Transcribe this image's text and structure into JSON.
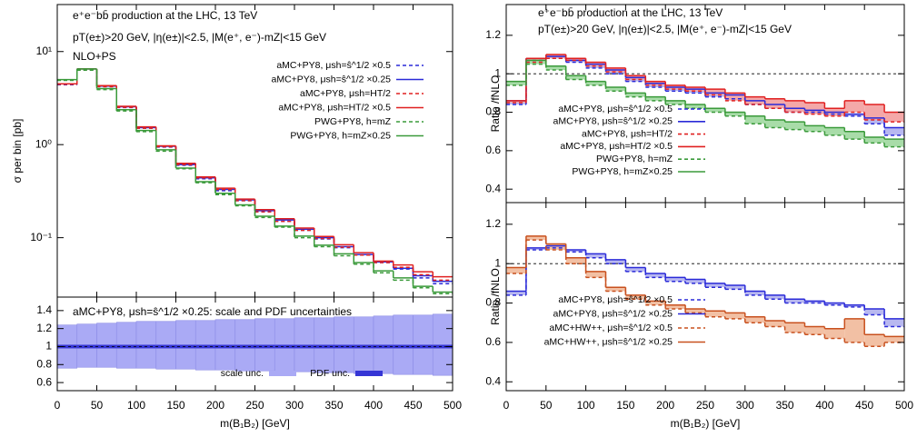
{
  "chart_data": [
    {
      "type": "histogram",
      "title": "e⁺e⁻bb̄ production at the LHC, 13 TeV",
      "subtitle": "pT(e±)>20 GeV, |η(e±)|<2.5, |M(e⁺, e⁻)-mZ|<15 GeV",
      "note": "NLO+PS",
      "y_label": "σ per bin [pb]",
      "log_scale": true,
      "xlim": [
        0,
        500
      ],
      "xticks": [
        0,
        50,
        100,
        150,
        200,
        250,
        300,
        350,
        400,
        450,
        500
      ],
      "ylim": [
        0.023,
        32
      ],
      "yticks": [
        {
          "value": 0.1,
          "label": "10⁻¹"
        },
        {
          "value": 1,
          "label": "10⁰"
        },
        {
          "value": 10,
          "label": "10¹"
        }
      ],
      "bins": [
        0,
        25,
        50,
        75,
        100,
        125,
        150,
        175,
        200,
        225,
        250,
        275,
        300,
        325,
        350,
        375,
        400,
        425,
        450,
        475,
        500
      ],
      "series": [
        {
          "name": "aMC+PY8, μsh=ŝ^1/2 ×0.5",
          "color": "#2a2ad8",
          "line_style": "dashed",
          "values": [
            4.4,
            6.4,
            4.2,
            2.5,
            1.5,
            0.94,
            0.6,
            0.43,
            0.32,
            0.25,
            0.19,
            0.15,
            0.12,
            0.097,
            0.078,
            0.065,
            0.054,
            0.046,
            0.037,
            0.032
          ]
        },
        {
          "name": "aMC+PY8, μsh=ŝ^1/2 ×0.25",
          "color": "#2a2ad8",
          "line_style": "solid",
          "values": [
            4.5,
            6.5,
            4.25,
            2.55,
            1.52,
            0.96,
            0.61,
            0.44,
            0.33,
            0.255,
            0.195,
            0.155,
            0.123,
            0.1,
            0.08,
            0.066,
            0.055,
            0.047,
            0.039,
            0.034
          ]
        },
        {
          "name": "aMC+PY8, μsh=HT/2",
          "color": "#e02020",
          "line_style": "dashed",
          "values": [
            4.45,
            6.4,
            4.2,
            2.52,
            1.5,
            0.95,
            0.61,
            0.44,
            0.33,
            0.25,
            0.19,
            0.15,
            0.12,
            0.098,
            0.079,
            0.065,
            0.054,
            0.048,
            0.04,
            0.035
          ]
        },
        {
          "name": "aMC+PY8, μsh=HT/2 ×0.5",
          "color": "#e02020",
          "line_style": "solid",
          "values": [
            4.5,
            6.5,
            4.3,
            2.58,
            1.55,
            0.97,
            0.63,
            0.45,
            0.34,
            0.26,
            0.2,
            0.16,
            0.127,
            0.103,
            0.084,
            0.069,
            0.056,
            0.051,
            0.043,
            0.038
          ]
        },
        {
          "name": "PWG+PY8, h=mZ",
          "color": "#3a9a3a",
          "line_style": "dashed",
          "values": [
            4.9,
            6.3,
            3.9,
            2.3,
            1.38,
            0.85,
            0.55,
            0.39,
            0.29,
            0.22,
            0.165,
            0.13,
            0.1,
            0.08,
            0.064,
            0.052,
            0.042,
            0.035,
            0.029,
            0.025
          ]
        },
        {
          "name": "PWG+PY8, h=mZ×0.25",
          "color": "#3a9a3a",
          "line_style": "solid",
          "values": [
            5.0,
            6.5,
            4.0,
            2.37,
            1.42,
            0.88,
            0.56,
            0.4,
            0.3,
            0.225,
            0.17,
            0.133,
            0.104,
            0.083,
            0.067,
            0.054,
            0.044,
            0.037,
            0.03,
            0.026
          ]
        }
      ]
    },
    {
      "type": "band",
      "annotation": "aMC+PY8, μsh=ŝ^1/2 ×0.25: scale and PDF uncertainties",
      "x_label": "m(B₁B₂) [GeV]",
      "xlim": [
        0,
        500
      ],
      "xticks": [
        0,
        50,
        100,
        150,
        200,
        250,
        300,
        350,
        400,
        450,
        500
      ],
      "ylim": [
        0.51,
        1.55
      ],
      "yticks": [
        0.6,
        0.8,
        1,
        1.2,
        1.4
      ],
      "hline": 1,
      "bins": [
        0,
        25,
        50,
        75,
        100,
        125,
        150,
        175,
        200,
        225,
        250,
        275,
        300,
        325,
        350,
        375,
        400,
        425,
        450,
        475,
        500
      ],
      "series": [
        {
          "name": "scale unc.",
          "color": "#aaaaf5",
          "lower": [
            0.76,
            0.77,
            0.77,
            0.76,
            0.76,
            0.75,
            0.75,
            0.74,
            0.74,
            0.73,
            0.73,
            0.72,
            0.72,
            0.71,
            0.71,
            0.7,
            0.7,
            0.69,
            0.69,
            0.68
          ],
          "upper": [
            1.24,
            1.25,
            1.26,
            1.27,
            1.28,
            1.28,
            1.29,
            1.29,
            1.3,
            1.3,
            1.31,
            1.31,
            1.32,
            1.32,
            1.33,
            1.33,
            1.34,
            1.35,
            1.35,
            1.36
          ]
        },
        {
          "name": "PDF unc.",
          "color": "#3535d5",
          "lower": [
            0.98,
            0.98,
            0.98,
            0.98,
            0.98,
            0.98,
            0.98,
            0.98,
            0.98,
            0.98,
            0.98,
            0.98,
            0.98,
            0.98,
            0.98,
            0.98,
            0.98,
            0.98,
            0.98,
            0.98
          ],
          "upper": [
            1.02,
            1.02,
            1.02,
            1.02,
            1.02,
            1.02,
            1.02,
            1.02,
            1.02,
            1.02,
            1.02,
            1.02,
            1.02,
            1.02,
            1.02,
            1.02,
            1.02,
            1.02,
            1.02,
            1.02
          ]
        }
      ]
    },
    {
      "type": "histogram",
      "title": "e⁺e⁻bb̄ production at the LHC, 13 TeV",
      "subtitle": "pT(e±)>20 GeV, |η(e±)|<2.5, |M(e⁺, e⁻)-mZ|<15 GeV",
      "y_label": "Ratio /fNLO",
      "hline": 1,
      "xlim": [
        0,
        500
      ],
      "xticks": [
        0,
        50,
        100,
        150,
        200,
        250,
        300,
        350,
        400,
        450,
        500
      ],
      "ylim": [
        0.33,
        1.36
      ],
      "yticks": [
        0.4,
        0.6,
        0.8,
        1,
        1.2
      ],
      "bins": [
        0,
        25,
        50,
        75,
        100,
        125,
        150,
        175,
        200,
        225,
        250,
        275,
        300,
        325,
        350,
        375,
        400,
        425,
        450,
        475,
        500
      ],
      "series": [
        {
          "name": "aMC+PY8, μsh=ŝ^1/2 ×0.5",
          "color": "#2a2ad8",
          "line_style": "dashed",
          "values": [
            0.84,
            1.07,
            1.08,
            1.06,
            1.03,
            1.0,
            0.96,
            0.93,
            0.91,
            0.9,
            0.88,
            0.87,
            0.84,
            0.82,
            0.8,
            0.8,
            0.79,
            0.78,
            0.74,
            0.68
          ]
        },
        {
          "name": "aMC+PY8, μsh=ŝ^1/2 ×0.25",
          "color": "#2a2ad8",
          "line_style": "solid",
          "band_color": "#b8b8f0",
          "values": [
            0.86,
            1.08,
            1.09,
            1.07,
            1.05,
            1.02,
            0.98,
            0.95,
            0.93,
            0.92,
            0.9,
            0.89,
            0.86,
            0.84,
            0.82,
            0.81,
            0.8,
            0.79,
            0.77,
            0.72
          ]
        },
        {
          "name": "aMC+PY8, μsh=HT/2",
          "color": "#e02020",
          "line_style": "dashed",
          "values": [
            0.85,
            1.06,
            1.08,
            1.07,
            1.04,
            1.01,
            0.97,
            0.94,
            0.92,
            0.91,
            0.89,
            0.86,
            0.84,
            0.82,
            0.8,
            0.79,
            0.78,
            0.8,
            0.76,
            0.75
          ]
        },
        {
          "name": "aMC+PY8, μsh=HT/2 ×0.5",
          "color": "#e02020",
          "line_style": "solid",
          "band_color": "#f4a8a8",
          "values": [
            0.86,
            1.08,
            1.1,
            1.08,
            1.06,
            1.03,
            0.99,
            0.96,
            0.94,
            0.93,
            0.92,
            0.9,
            0.88,
            0.87,
            0.86,
            0.85,
            0.82,
            0.86,
            0.84,
            0.8
          ]
        },
        {
          "name": "PWG+PY8, h=mZ",
          "color": "#3a9a3a",
          "line_style": "dashed",
          "values": [
            0.94,
            1.05,
            1.02,
            0.97,
            0.94,
            0.91,
            0.88,
            0.86,
            0.84,
            0.82,
            0.8,
            0.78,
            0.74,
            0.72,
            0.71,
            0.7,
            0.68,
            0.66,
            0.64,
            0.62
          ]
        },
        {
          "name": "PWG+PY8, h=mZ×0.25",
          "color": "#3a9a3a",
          "line_style": "solid",
          "band_color": "#a8dca8",
          "values": [
            0.96,
            1.07,
            1.04,
            0.99,
            0.96,
            0.93,
            0.9,
            0.88,
            0.86,
            0.84,
            0.82,
            0.8,
            0.78,
            0.76,
            0.75,
            0.73,
            0.72,
            0.7,
            0.67,
            0.66
          ]
        }
      ]
    },
    {
      "type": "histogram",
      "y_label": "Ratio /fNLO",
      "x_label": "m(B₁B₂) [GeV]",
      "hline": 1,
      "xlim": [
        0,
        500
      ],
      "xticks": [
        0,
        50,
        100,
        150,
        200,
        250,
        300,
        350,
        400,
        450,
        500
      ],
      "ylim": [
        0.355,
        1.31
      ],
      "yticks": [
        0.4,
        0.6,
        0.8,
        1,
        1.2
      ],
      "bins": [
        0,
        25,
        50,
        75,
        100,
        125,
        150,
        175,
        200,
        225,
        250,
        275,
        300,
        325,
        350,
        375,
        400,
        425,
        450,
        475,
        500
      ],
      "series": [
        {
          "name": "aMC+PY8, μsh=ŝ^1/2 ×0.5",
          "color": "#2a2ad8",
          "line_style": "dashed",
          "values": [
            0.84,
            1.07,
            1.08,
            1.06,
            1.03,
            1.0,
            0.96,
            0.93,
            0.91,
            0.9,
            0.88,
            0.87,
            0.84,
            0.82,
            0.8,
            0.8,
            0.79,
            0.78,
            0.74,
            0.68
          ]
        },
        {
          "name": "aMC+PY8, μsh=ŝ^1/2 ×0.25",
          "color": "#2a2ad8",
          "line_style": "solid",
          "band_color": "#b8b8f0",
          "values": [
            0.86,
            1.08,
            1.09,
            1.07,
            1.05,
            1.02,
            0.98,
            0.95,
            0.93,
            0.92,
            0.9,
            0.89,
            0.86,
            0.84,
            0.82,
            0.81,
            0.8,
            0.79,
            0.77,
            0.72
          ]
        },
        {
          "name": "aMC+HW++, μsh=ŝ^1/2 ×0.5",
          "color": "#c8501e",
          "line_style": "dashed",
          "values": [
            0.95,
            1.12,
            1.07,
            1.0,
            0.93,
            0.86,
            0.82,
            0.79,
            0.77,
            0.75,
            0.73,
            0.72,
            0.7,
            0.68,
            0.65,
            0.64,
            0.62,
            0.6,
            0.58,
            0.6
          ]
        },
        {
          "name": "aMC+HW++, μsh=ŝ^1/2 ×0.25",
          "color": "#c8501e",
          "line_style": "solid",
          "band_color": "#f2c0a4",
          "values": [
            0.98,
            1.14,
            1.1,
            1.03,
            0.96,
            0.88,
            0.84,
            0.81,
            0.79,
            0.77,
            0.76,
            0.75,
            0.73,
            0.71,
            0.7,
            0.68,
            0.67,
            0.72,
            0.64,
            0.63
          ]
        }
      ]
    }
  ]
}
